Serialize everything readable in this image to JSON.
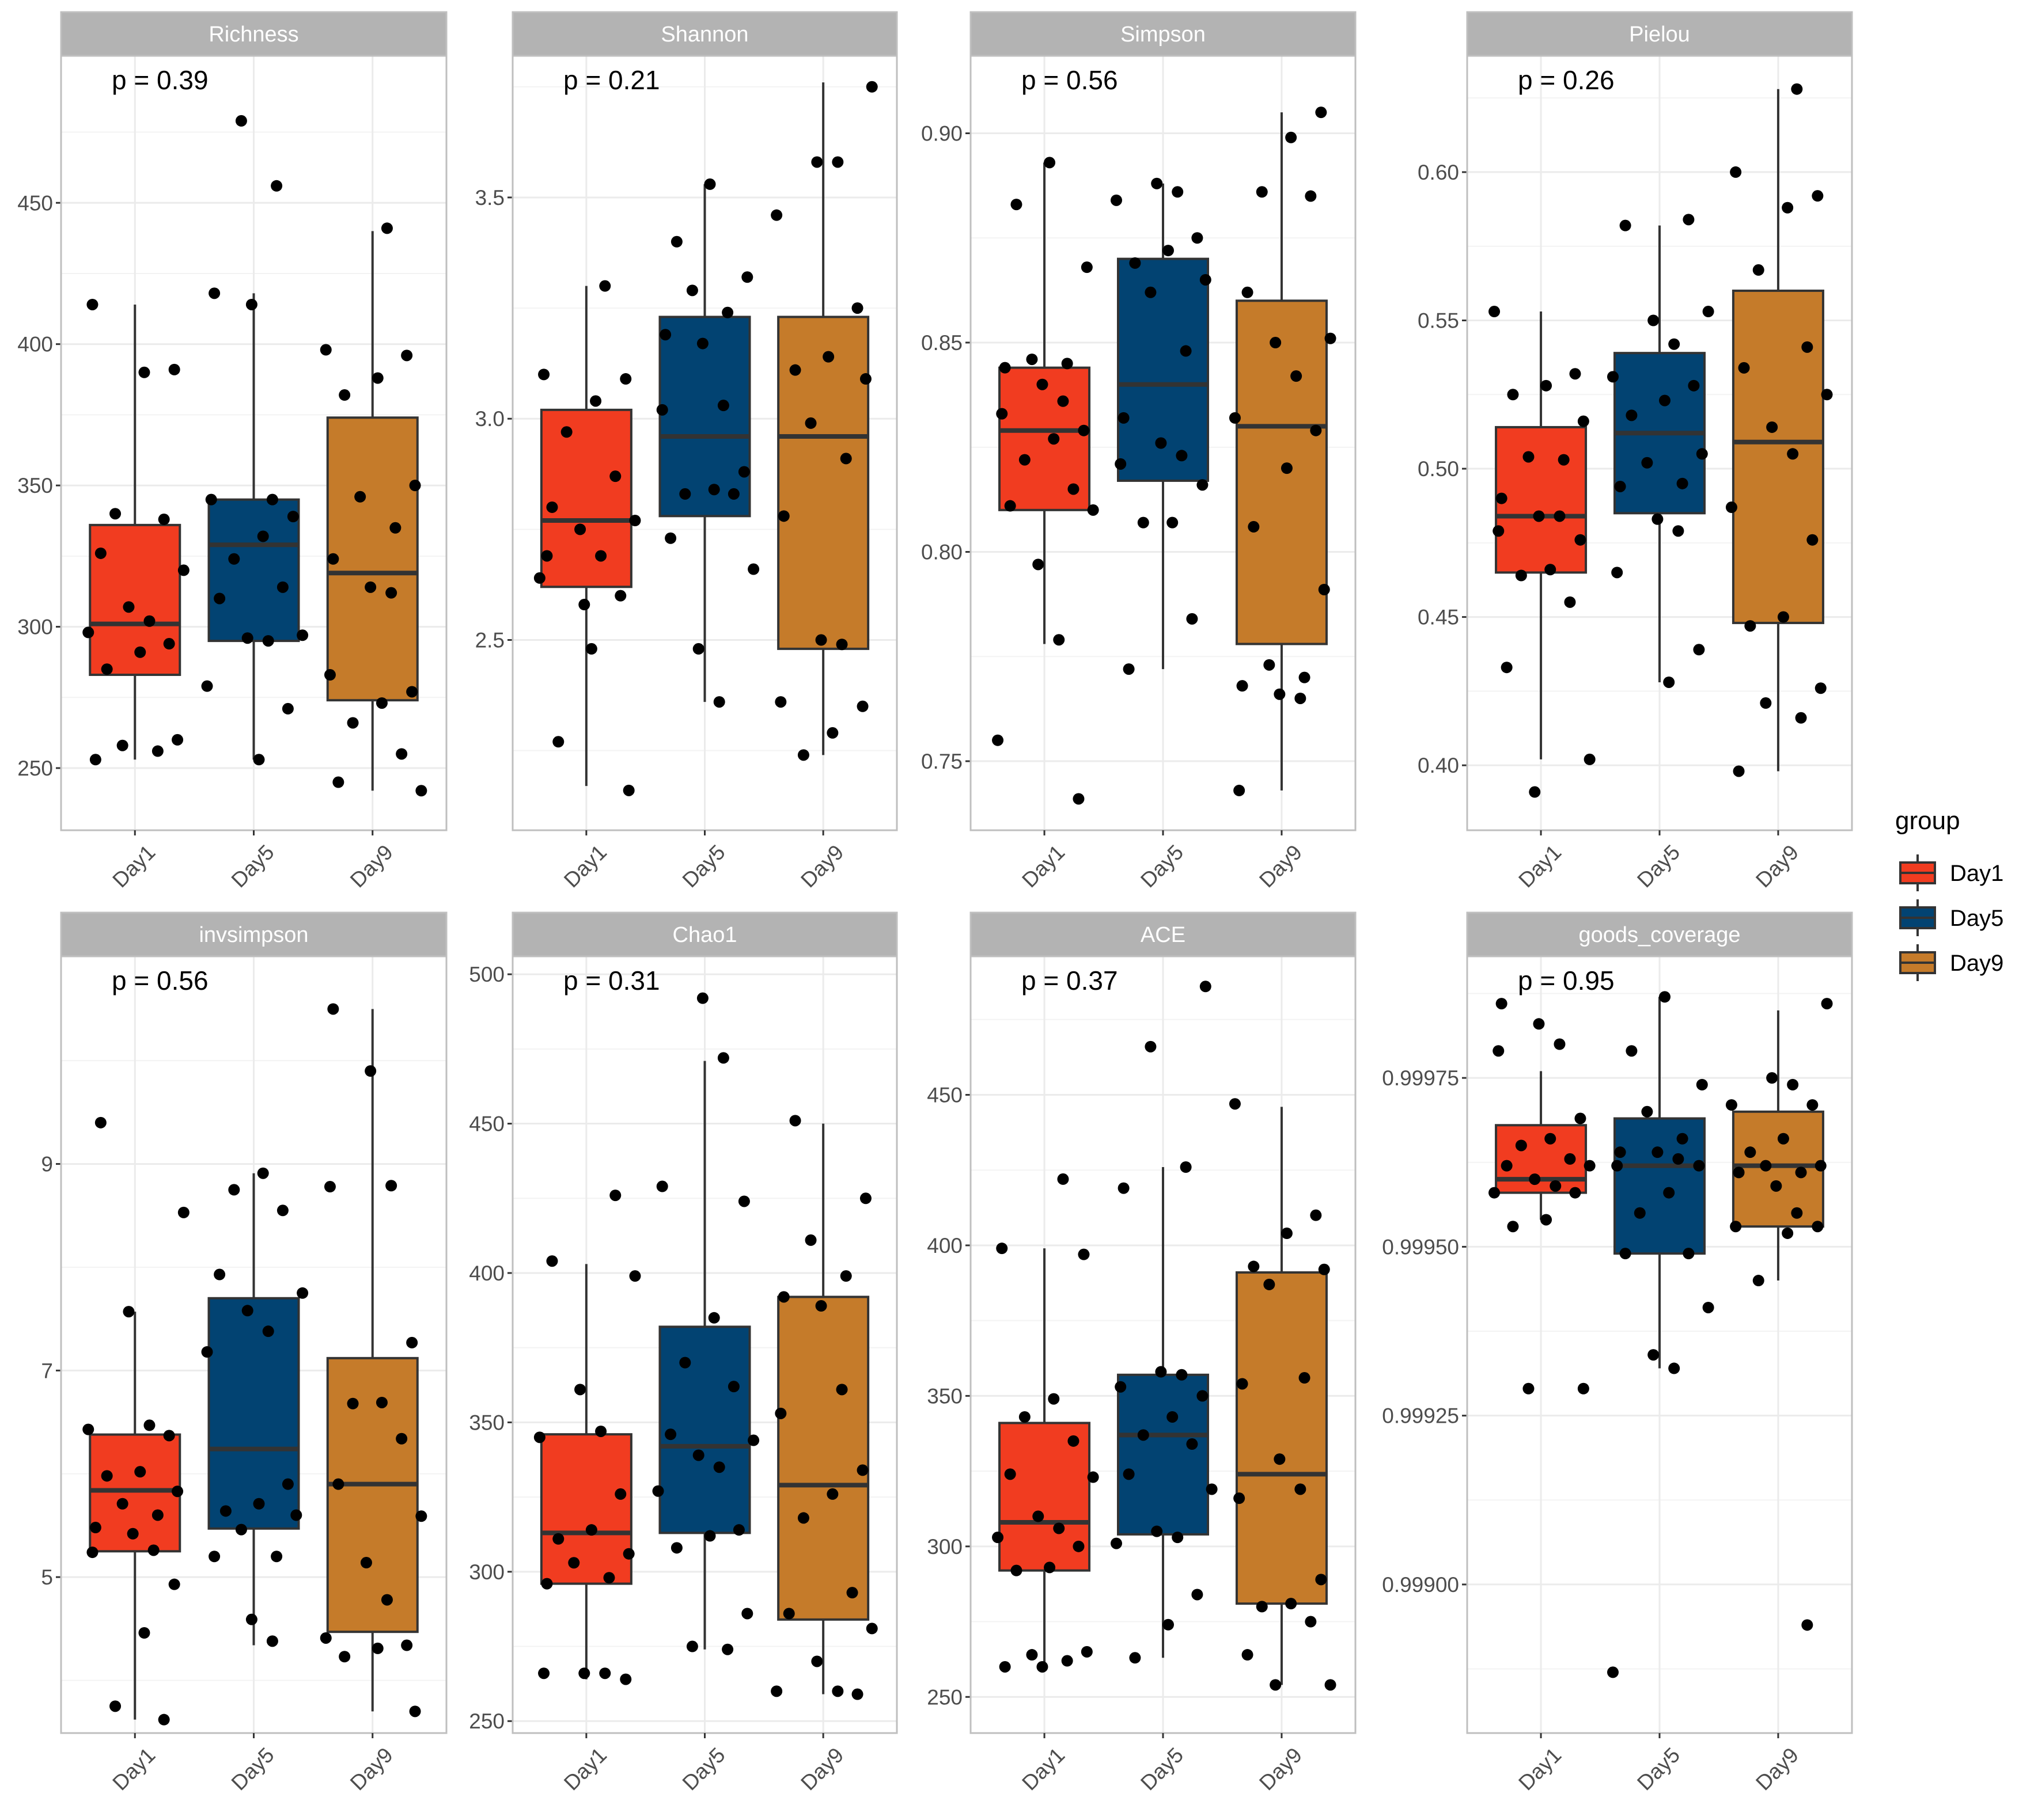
{
  "chart_data": [
    {
      "type": "box",
      "title": "Richness",
      "annotation": "p = 0.39",
      "ylim": [
        228,
        502
      ],
      "yticks": [
        250,
        300,
        350,
        400,
        450
      ],
      "yticklabels": [
        "250",
        "300",
        "350",
        "400",
        "450"
      ],
      "categories": [
        "Day1",
        "Day5",
        "Day9"
      ],
      "series": [
        {
          "name": "Day1",
          "q1": 283,
          "median": 301,
          "q3": 336,
          "whisker_low": 253,
          "whisker_high": 414,
          "points": [
            253,
            256,
            258,
            260,
            285,
            291,
            294,
            298,
            302,
            307,
            320,
            326,
            338,
            340,
            390,
            391,
            414
          ]
        },
        {
          "name": "Day5",
          "q1": 295,
          "median": 329,
          "q3": 345,
          "whisker_low": 253,
          "whisker_high": 418,
          "points": [
            253,
            271,
            279,
            295,
            296,
            297,
            310,
            314,
            324,
            332,
            339,
            345,
            345,
            414,
            418,
            456,
            479
          ]
        },
        {
          "name": "Day9",
          "q1": 274,
          "median": 319,
          "q3": 374,
          "whisker_low": 242,
          "whisker_high": 440,
          "points": [
            242,
            245,
            255,
            266,
            273,
            277,
            283,
            312,
            314,
            324,
            335,
            346,
            350,
            382,
            388,
            396,
            398,
            441
          ]
        }
      ]
    },
    {
      "type": "box",
      "title": "Shannon",
      "annotation": "p = 0.21",
      "ylim": [
        2.07,
        3.82
      ],
      "yticks": [
        2.5,
        3.0,
        3.5
      ],
      "yticklabels": [
        "2.5",
        "3.0",
        "3.5"
      ],
      "categories": [
        "Day1",
        "Day5",
        "Day9"
      ],
      "series": [
        {
          "name": "Day1",
          "q1": 2.62,
          "median": 2.77,
          "q3": 3.02,
          "whisker_low": 2.17,
          "whisker_high": 3.3,
          "points": [
            2.16,
            2.27,
            2.48,
            2.6,
            2.64,
            2.69,
            2.75,
            2.77,
            2.8,
            2.87,
            2.97,
            3.04,
            3.09,
            3.1,
            3.3,
            2.58,
            2.69
          ]
        },
        {
          "name": "Day5",
          "q1": 2.78,
          "median": 2.96,
          "q3": 3.23,
          "whisker_low": 2.36,
          "whisker_high": 3.53,
          "points": [
            2.36,
            2.48,
            2.66,
            2.73,
            2.83,
            2.83,
            2.84,
            2.88,
            3.02,
            3.03,
            3.17,
            3.19,
            3.24,
            3.29,
            3.32,
            3.4,
            3.53
          ]
        },
        {
          "name": "Day9",
          "q1": 2.48,
          "median": 2.96,
          "q3": 3.23,
          "whisker_low": 2.24,
          "whisker_high": 3.76,
          "points": [
            2.24,
            2.29,
            2.35,
            2.36,
            2.49,
            2.5,
            2.78,
            2.91,
            2.99,
            3.09,
            3.11,
            3.14,
            3.25,
            3.46,
            3.58,
            3.58,
            3.75
          ]
        }
      ]
    },
    {
      "type": "box",
      "title": "Simpson",
      "annotation": "p = 0.56",
      "ylim": [
        0.7335,
        0.9185
      ],
      "yticks": [
        0.75,
        0.8,
        0.85,
        0.9
      ],
      "yticklabels": [
        "0.75",
        "0.80",
        "0.85",
        "0.90"
      ],
      "categories": [
        "Day1",
        "Day5",
        "Day9"
      ],
      "series": [
        {
          "name": "Day1",
          "q1": 0.81,
          "median": 0.829,
          "q3": 0.844,
          "whisker_low": 0.778,
          "whisker_high": 0.893,
          "points": [
            0.741,
            0.755,
            0.779,
            0.797,
            0.81,
            0.811,
            0.815,
            0.822,
            0.827,
            0.829,
            0.833,
            0.836,
            0.84,
            0.844,
            0.845,
            0.846,
            0.868,
            0.883,
            0.893
          ]
        },
        {
          "name": "Day5",
          "q1": 0.817,
          "median": 0.84,
          "q3": 0.87,
          "whisker_low": 0.772,
          "whisker_high": 0.888,
          "points": [
            0.772,
            0.784,
            0.807,
            0.807,
            0.816,
            0.821,
            0.823,
            0.826,
            0.832,
            0.848,
            0.862,
            0.865,
            0.869,
            0.872,
            0.875,
            0.884,
            0.886,
            0.888
          ]
        },
        {
          "name": "Day9",
          "q1": 0.778,
          "median": 0.83,
          "q3": 0.86,
          "whisker_low": 0.743,
          "whisker_high": 0.905,
          "points": [
            0.743,
            0.765,
            0.766,
            0.768,
            0.77,
            0.773,
            0.791,
            0.806,
            0.82,
            0.829,
            0.832,
            0.842,
            0.85,
            0.851,
            0.862,
            0.885,
            0.886,
            0.899,
            0.905
          ]
        }
      ]
    },
    {
      "type": "box",
      "title": "Pielou",
      "annotation": "p = 0.26",
      "ylim": [
        0.3781,
        0.6392
      ],
      "yticks": [
        0.4,
        0.45,
        0.5,
        0.55,
        0.6
      ],
      "yticklabels": [
        "0.40",
        "0.45",
        "0.50",
        "0.55",
        "0.60"
      ],
      "categories": [
        "Day1",
        "Day5",
        "Day9"
      ],
      "series": [
        {
          "name": "Day1",
          "q1": 0.465,
          "median": 0.484,
          "q3": 0.514,
          "whisker_low": 0.402,
          "whisker_high": 0.553,
          "points": [
            0.391,
            0.402,
            0.433,
            0.455,
            0.464,
            0.466,
            0.476,
            0.479,
            0.484,
            0.484,
            0.49,
            0.503,
            0.504,
            0.516,
            0.525,
            0.528,
            0.532,
            0.553
          ]
        },
        {
          "name": "Day5",
          "q1": 0.485,
          "median": 0.512,
          "q3": 0.539,
          "whisker_low": 0.428,
          "whisker_high": 0.582,
          "points": [
            0.428,
            0.439,
            0.465,
            0.479,
            0.483,
            0.494,
            0.495,
            0.502,
            0.505,
            0.518,
            0.523,
            0.528,
            0.531,
            0.542,
            0.55,
            0.553,
            0.582,
            0.584
          ]
        },
        {
          "name": "Day9",
          "q1": 0.448,
          "median": 0.509,
          "q3": 0.56,
          "whisker_low": 0.398,
          "whisker_high": 0.628,
          "points": [
            0.398,
            0.416,
            0.421,
            0.426,
            0.447,
            0.45,
            0.476,
            0.487,
            0.505,
            0.514,
            0.525,
            0.534,
            0.541,
            0.567,
            0.588,
            0.592,
            0.6,
            0.628
          ]
        }
      ]
    },
    {
      "type": "box",
      "title": "invsimpson",
      "annotation": "p = 0.56",
      "ylim": [
        3.49,
        11.01
      ],
      "yticks": [
        5,
        7,
        9
      ],
      "yticklabels": [
        "5",
        "7",
        "9"
      ],
      "categories": [
        "Day1",
        "Day5",
        "Day9"
      ],
      "series": [
        {
          "name": "Day1",
          "q1": 5.25,
          "median": 5.84,
          "q3": 6.38,
          "whisker_low": 3.62,
          "whisker_high": 7.57,
          "points": [
            3.62,
            3.75,
            4.46,
            4.93,
            5.24,
            5.26,
            5.42,
            5.48,
            5.6,
            5.71,
            5.83,
            5.98,
            6.02,
            6.37,
            6.43,
            6.47,
            7.57,
            8.53,
            9.4
          ]
        },
        {
          "name": "Day5",
          "q1": 5.47,
          "median": 6.24,
          "q3": 7.7,
          "whisker_low": 4.34,
          "whisker_high": 8.91,
          "points": [
            4.38,
            4.59,
            5.2,
            5.2,
            5.46,
            5.6,
            5.64,
            5.71,
            5.9,
            7.18,
            7.38,
            7.58,
            7.75,
            7.93,
            8.55,
            8.75,
            8.91
          ]
        },
        {
          "name": "Day9",
          "q1": 4.47,
          "median": 5.9,
          "q3": 7.12,
          "whisker_low": 3.7,
          "whisker_high": 10.5,
          "points": [
            3.7,
            4.23,
            4.31,
            4.34,
            4.41,
            4.78,
            5.14,
            5.59,
            5.9,
            6.34,
            6.68,
            6.69,
            7.27,
            8.78,
            8.79,
            9.9,
            10.5
          ]
        }
      ]
    },
    {
      "type": "box",
      "title": "Chao1",
      "annotation": "p = 0.31",
      "ylim": [
        246,
        506
      ],
      "yticks": [
        250,
        300,
        350,
        400,
        450,
        500
      ],
      "yticklabels": [
        "250",
        "300",
        "350",
        "400",
        "450",
        "500"
      ],
      "categories": [
        "Day1",
        "Day5",
        "Day9"
      ],
      "series": [
        {
          "name": "Day1",
          "q1": 296,
          "median": 313,
          "q3": 346,
          "whisker_low": 264,
          "whisker_high": 403,
          "points": [
            264,
            266,
            266,
            266,
            296,
            298,
            303,
            306,
            311,
            314,
            326,
            345,
            347,
            361,
            399,
            404,
            426
          ]
        },
        {
          "name": "Day5",
          "q1": 313,
          "median": 342,
          "q3": 382,
          "whisker_low": 274,
          "whisker_high": 471,
          "points": [
            274,
            275,
            286,
            308,
            312,
            314,
            327,
            335,
            339,
            344,
            346,
            362,
            370,
            385,
            424,
            429,
            472,
            492
          ]
        },
        {
          "name": "Day9",
          "q1": 284,
          "median": 329,
          "q3": 392,
          "whisker_low": 259,
          "whisker_high": 450,
          "points": [
            259,
            260,
            260,
            270,
            281,
            286,
            293,
            318,
            326,
            334,
            353,
            361,
            389,
            392,
            399,
            411,
            425,
            451
          ]
        }
      ]
    },
    {
      "type": "box",
      "title": "ACE",
      "annotation": "p = 0.37",
      "ylim": [
        238,
        496
      ],
      "yticks": [
        250,
        300,
        350,
        400,
        450
      ],
      "yticklabels": [
        "250",
        "300",
        "350",
        "400",
        "450"
      ],
      "categories": [
        "Day1",
        "Day5",
        "Day9"
      ],
      "series": [
        {
          "name": "Day1",
          "q1": 292,
          "median": 308,
          "q3": 341,
          "whisker_low": 260,
          "whisker_high": 399,
          "points": [
            260,
            260,
            262,
            264,
            265,
            292,
            293,
            300,
            303,
            306,
            310,
            323,
            324,
            335,
            343,
            349,
            397,
            399,
            422
          ]
        },
        {
          "name": "Day5",
          "q1": 304,
          "median": 337,
          "q3": 357,
          "whisker_low": 263,
          "whisker_high": 426,
          "points": [
            263,
            274,
            284,
            301,
            303,
            305,
            319,
            324,
            334,
            337,
            343,
            350,
            353,
            357,
            358,
            419,
            426,
            466,
            486
          ]
        },
        {
          "name": "Day9",
          "q1": 281,
          "median": 324,
          "q3": 391,
          "whisker_low": 254,
          "whisker_high": 446,
          "points": [
            254,
            254,
            264,
            275,
            280,
            281,
            289,
            316,
            319,
            329,
            354,
            356,
            387,
            392,
            393,
            404,
            410,
            447
          ]
        }
      ]
    },
    {
      "type": "box",
      "title": "goods_coverage",
      "annotation": "p = 0.95",
      "ylim": [
        0.99878,
        0.99993
      ],
      "yticks": [
        0.999,
        0.99925,
        0.9995,
        0.99975
      ],
      "yticklabels": [
        "0.99900",
        "0.99925",
        "0.99950",
        "0.99975"
      ],
      "categories": [
        "Day1",
        "Day5",
        "Day9"
      ],
      "series": [
        {
          "name": "Day1",
          "q1": 0.99958,
          "median": 0.9996,
          "q3": 0.99968,
          "whisker_low": 0.99954,
          "whisker_high": 0.99976,
          "points": [
            0.99929,
            0.99929,
            0.99953,
            0.99954,
            0.99958,
            0.99958,
            0.99959,
            0.9996,
            0.99962,
            0.99962,
            0.99963,
            0.99965,
            0.99966,
            0.99969,
            0.99979,
            0.9998,
            0.99983,
            0.99986
          ]
        },
        {
          "name": "Day5",
          "q1": 0.99949,
          "median": 0.99962,
          "q3": 0.99969,
          "whisker_low": 0.99932,
          "whisker_high": 0.99987,
          "points": [
            0.99887,
            0.99932,
            0.99934,
            0.99941,
            0.99949,
            0.99949,
            0.99955,
            0.99958,
            0.99962,
            0.99962,
            0.99963,
            0.99964,
            0.99964,
            0.99966,
            0.9997,
            0.99974,
            0.99979,
            0.99987
          ]
        },
        {
          "name": "Day9",
          "q1": 0.99953,
          "median": 0.99962,
          "q3": 0.9997,
          "whisker_low": 0.99945,
          "whisker_high": 0.99985,
          "points": [
            0.99894,
            0.99945,
            0.99952,
            0.99953,
            0.99953,
            0.99955,
            0.99959,
            0.99961,
            0.99961,
            0.99962,
            0.99962,
            0.99964,
            0.99966,
            0.99971,
            0.99971,
            0.99974,
            0.99975,
            0.99986
          ]
        }
      ]
    }
  ],
  "legend": {
    "title": "group",
    "placement": "right",
    "items": [
      {
        "label": "Day1",
        "color": "#F13C20"
      },
      {
        "label": "Day5",
        "color": "#024372"
      },
      {
        "label": "Day9",
        "color": "#C57B2A"
      }
    ]
  },
  "colors": {
    "Day1": "#F13C20",
    "Day5": "#024372",
    "Day9": "#C57B2A",
    "strip": "#B3B3B3",
    "grid": "#EBEBEB",
    "panel_border": "#BFBFBF",
    "point": "#000000"
  }
}
